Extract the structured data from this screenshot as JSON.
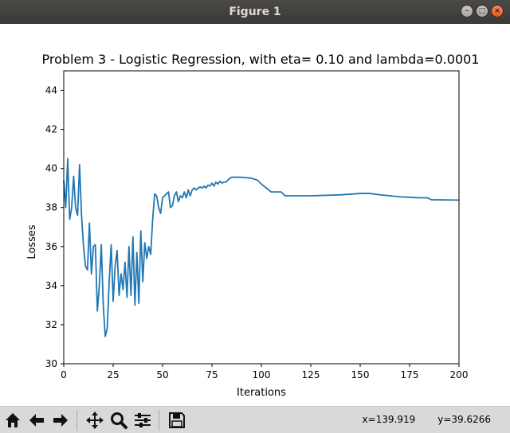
{
  "window": {
    "title": "Figure 1"
  },
  "toolbar": {
    "buttons": [
      {
        "name": "home-button",
        "icon": "home-icon"
      },
      {
        "name": "back-button",
        "icon": "arrow-left-icon"
      },
      {
        "name": "forward-button",
        "icon": "arrow-right-icon"
      },
      {
        "name": "pan-button",
        "icon": "move-icon"
      },
      {
        "name": "zoom-button",
        "icon": "magnifier-icon"
      },
      {
        "name": "configure-subplots-button",
        "icon": "sliders-icon"
      },
      {
        "name": "save-button",
        "icon": "floppy-disk-icon"
      }
    ],
    "x_readout": "x=139.919",
    "y_readout": "y=39.6266"
  },
  "chart_data": {
    "type": "line",
    "title": "Problem 3 - Logistic Regression, with eta= 0.10 and lambda=0.0001",
    "xlabel": "Iterations",
    "ylabel": "Losses",
    "xlim": [
      0,
      200
    ],
    "ylim": [
      30,
      45
    ],
    "xticks": [
      "0",
      "25",
      "50",
      "75",
      "100",
      "125",
      "150",
      "175",
      "200"
    ],
    "yticks": [
      "30",
      "32",
      "34",
      "36",
      "38",
      "40",
      "42",
      "44"
    ],
    "grid": false,
    "line_color": "#1f77b4",
    "series": [
      {
        "x": [
          0,
          1,
          2,
          3,
          4,
          5,
          6,
          7,
          8,
          9,
          10,
          11,
          12,
          13,
          14,
          15,
          16,
          17,
          18,
          19,
          20,
          21,
          22,
          23,
          24,
          25,
          26,
          27,
          28,
          29,
          30,
          31,
          32,
          33,
          34,
          35,
          36,
          37,
          38,
          39,
          40,
          41,
          42,
          43,
          44,
          45,
          46,
          47,
          48,
          49,
          50,
          51,
          52,
          53,
          54,
          55,
          56,
          57,
          58,
          59,
          60,
          61,
          62,
          63,
          64,
          65,
          66,
          67,
          68,
          69,
          70,
          71,
          72,
          73,
          74,
          75,
          76,
          77,
          78,
          79,
          80,
          81,
          82,
          83,
          84,
          85,
          88,
          90,
          95,
          98,
          100,
          105,
          110,
          112,
          125,
          140,
          150,
          155,
          160,
          170,
          180,
          184,
          186,
          200
        ],
        "y": [
          39.4,
          38.0,
          40.5,
          37.4,
          38.0,
          39.6,
          38.0,
          37.6,
          40.2,
          37.6,
          36.0,
          35.0,
          34.8,
          37.2,
          34.6,
          36.0,
          36.1,
          32.7,
          34.0,
          36.1,
          33.0,
          31.4,
          31.8,
          34.2,
          36.1,
          33.2,
          35.0,
          35.8,
          33.5,
          34.6,
          33.8,
          35.2,
          33.4,
          36.0,
          33.5,
          36.5,
          33.0,
          35.7,
          33.1,
          36.8,
          34.2,
          36.2,
          35.4,
          36.0,
          35.6,
          37.4,
          38.7,
          38.6,
          38.0,
          37.7,
          38.5,
          38.6,
          38.7,
          38.8,
          38.0,
          38.1,
          38.6,
          38.8,
          38.3,
          38.6,
          38.5,
          38.8,
          38.5,
          38.9,
          38.6,
          38.9,
          39.0,
          38.9,
          39.0,
          39.05,
          39.0,
          39.1,
          39.0,
          39.15,
          39.1,
          39.25,
          39.1,
          39.3,
          39.2,
          39.35,
          39.25,
          39.3,
          39.3,
          39.4,
          39.5,
          39.55,
          39.55,
          39.55,
          39.5,
          39.4,
          39.2,
          38.8,
          38.8,
          38.6,
          38.6,
          38.65,
          38.72,
          38.72,
          38.65,
          38.55,
          38.5,
          38.5,
          38.4,
          38.38
        ]
      }
    ]
  }
}
